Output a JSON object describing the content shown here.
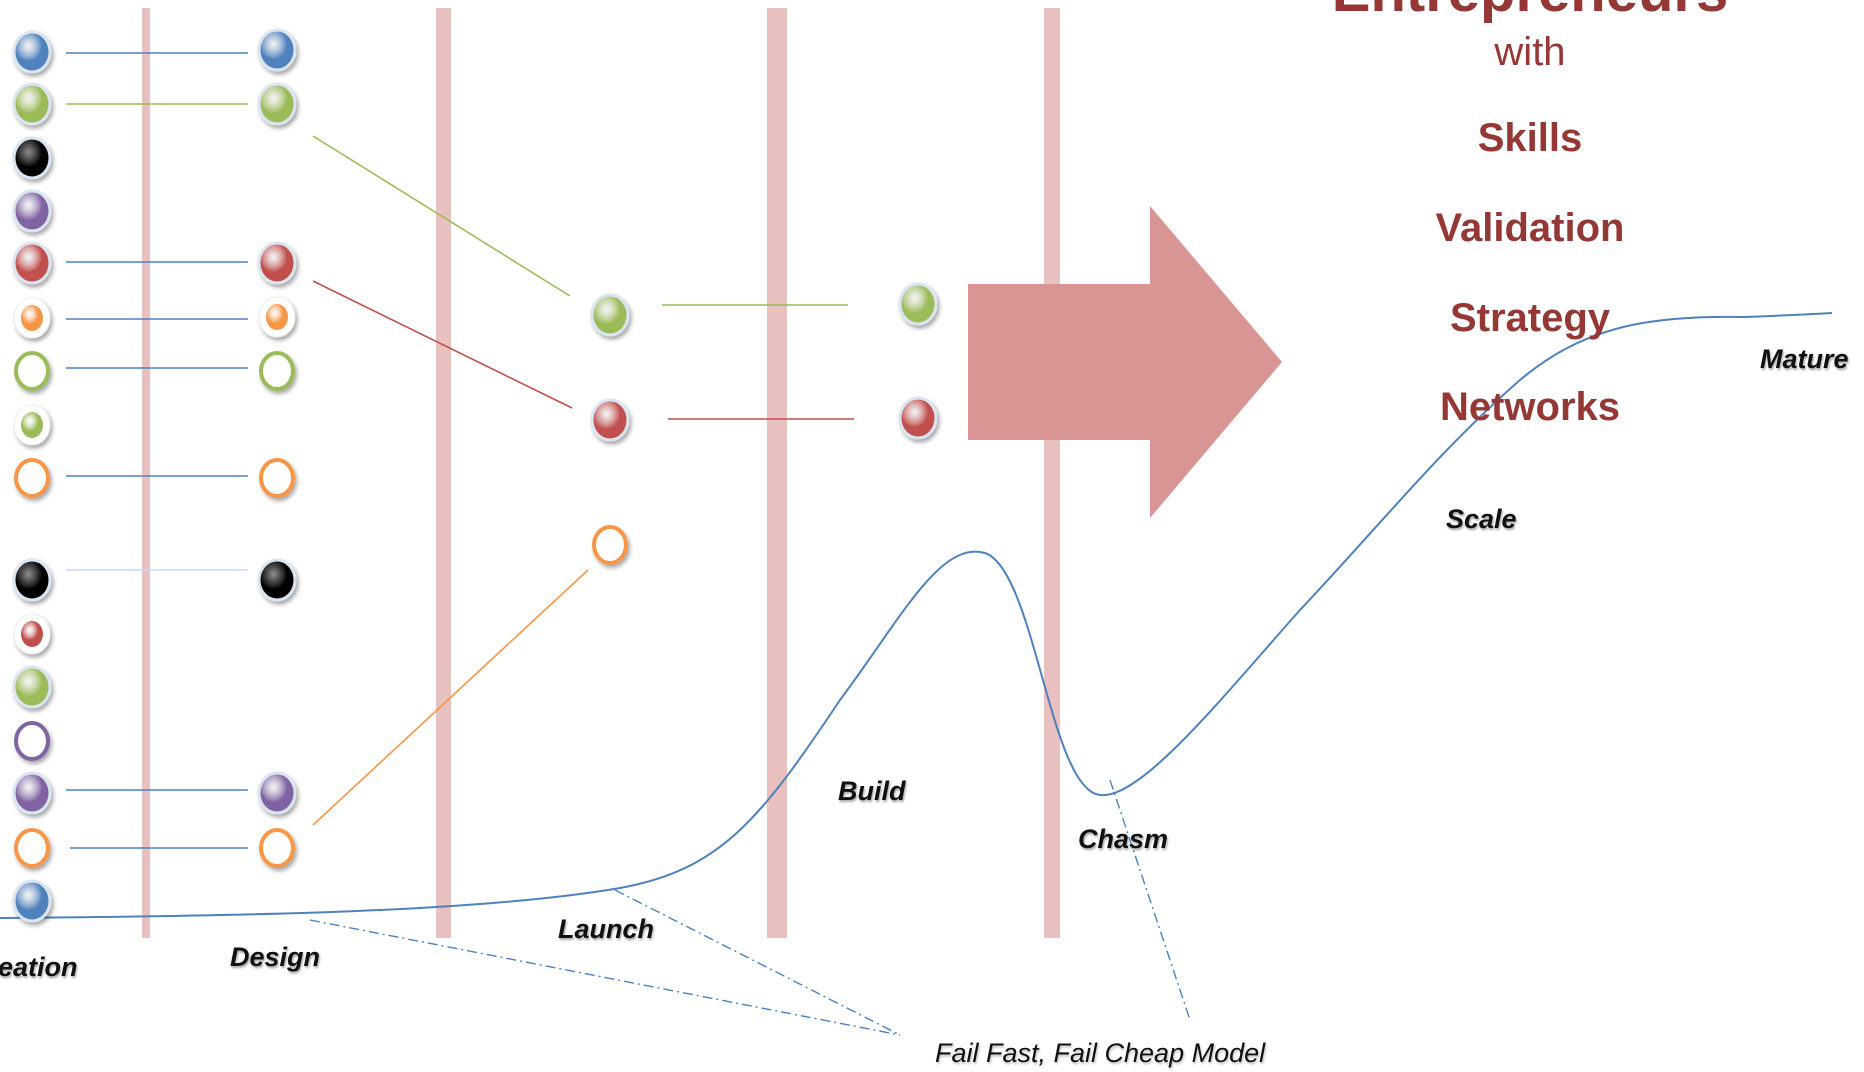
{
  "heading": "Entrepreneurs",
  "connector": "with",
  "skills": [
    "Skills",
    "Validation",
    "Strategy",
    "Networks"
  ],
  "stage_labels": {
    "ideation": "eation",
    "design": "Design",
    "launch": "Launch",
    "build": "Build",
    "chasm": "Chasm",
    "scale": "Scale",
    "mature": "Mature"
  },
  "note": "Fail Fast, Fail Cheap Model",
  "colors": {
    "title": "#953735",
    "gate_bar": "#e6b9b8",
    "arrow": "#d99594",
    "curve": "#4f81bd",
    "blue": "#4f81bd",
    "green": "#9bbb59",
    "red": "#c0504d",
    "orange": "#f79646",
    "purple": "#8064a2",
    "black": "#000000"
  },
  "idea_column": [
    {
      "color": "blue",
      "style": "filled"
    },
    {
      "color": "green",
      "style": "filled"
    },
    {
      "color": "black",
      "style": "filled"
    },
    {
      "color": "purple",
      "style": "filled"
    },
    {
      "color": "red",
      "style": "filled"
    },
    {
      "color": "orange",
      "style": "small"
    },
    {
      "color": "green",
      "style": "hollow"
    },
    {
      "color": "green",
      "style": "small"
    },
    {
      "color": "orange",
      "style": "hollow"
    },
    {
      "color": "black",
      "style": "filled"
    },
    {
      "color": "red",
      "style": "small"
    },
    {
      "color": "green",
      "style": "filled"
    },
    {
      "color": "purple",
      "style": "hollow"
    },
    {
      "color": "purple",
      "style": "filled"
    },
    {
      "color": "orange",
      "style": "hollow"
    },
    {
      "color": "blue",
      "style": "filled"
    }
  ],
  "design_column": [
    {
      "color": "blue",
      "style": "filled"
    },
    {
      "color": "green",
      "style": "filled"
    },
    {
      "color": "red",
      "style": "filled"
    },
    {
      "color": "orange",
      "style": "small"
    },
    {
      "color": "green",
      "style": "hollow"
    },
    {
      "color": "orange",
      "style": "hollow"
    },
    {
      "color": "black",
      "style": "filled"
    },
    {
      "color": "purple",
      "style": "filled"
    },
    {
      "color": "orange",
      "style": "hollow"
    }
  ],
  "launch_column": [
    {
      "color": "green",
      "style": "filled"
    },
    {
      "color": "red",
      "style": "filled"
    },
    {
      "color": "orange",
      "style": "hollow"
    }
  ],
  "build_column": [
    {
      "color": "green",
      "style": "filled"
    },
    {
      "color": "red",
      "style": "filled"
    }
  ]
}
